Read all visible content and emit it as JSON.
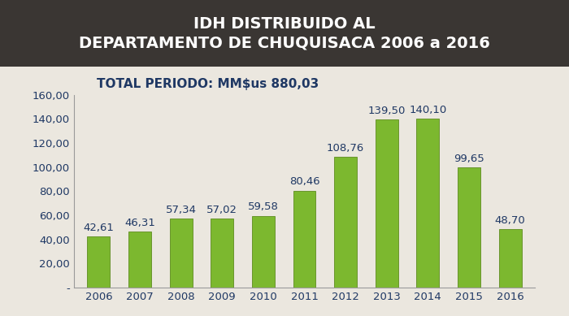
{
  "chart_data": {
    "type": "bar",
    "title": "IDH DISTRIBUIDO AL\nDEPARTAMENTO DE CHUQUISACA 2006 a 2016",
    "subtitle": "TOTAL PERIODO: MM$us 880,03",
    "categories": [
      "2006",
      "2007",
      "2008",
      "2009",
      "2010",
      "2011",
      "2012",
      "2013",
      "2014",
      "2015",
      "2016"
    ],
    "values": [
      42.61,
      46.31,
      57.34,
      57.02,
      59.58,
      80.46,
      108.76,
      139.5,
      140.1,
      99.65,
      48.7
    ],
    "value_labels": [
      "42,61",
      "46,31",
      "57,34",
      "57,02",
      "59,58",
      "80,46",
      "108,76",
      "139,50",
      "140,10",
      "99,65",
      "48,70"
    ],
    "data_labels": true,
    "color": "#7cb82f",
    "ylim": [
      0,
      160
    ],
    "yticks": [
      {
        "value": 0,
        "label": "-"
      },
      {
        "value": 20,
        "label": "20,00"
      },
      {
        "value": 40,
        "label": "40,00"
      },
      {
        "value": 60,
        "label": "60,00"
      },
      {
        "value": 80,
        "label": "80,00"
      },
      {
        "value": 100,
        "label": "100,00"
      },
      {
        "value": 120,
        "label": "120,00"
      },
      {
        "value": 140,
        "label": "140,00"
      },
      {
        "value": 160,
        "label": "160,00"
      }
    ],
    "grid": false
  }
}
